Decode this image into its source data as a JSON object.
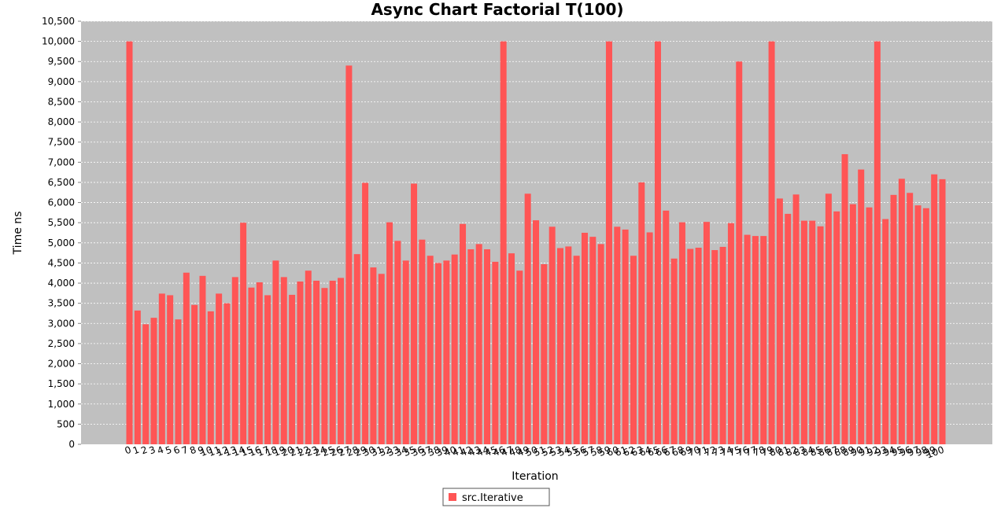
{
  "chart_data": {
    "type": "bar",
    "title": "Async Chart Factorial T(100)",
    "xlabel": "Iteration",
    "ylabel": "Time ns",
    "ylim": [
      0,
      10500
    ],
    "ytick_step": 500,
    "grid": true,
    "legend_position": "bottom-center",
    "colors": {
      "bar": "#ff5555",
      "plot_bg": "#c0c0c0",
      "grid": "#ffffff"
    },
    "categories": [
      "0",
      "1",
      "2",
      "3",
      "4",
      "5",
      "6",
      "7",
      "8",
      "9",
      "10",
      "11",
      "12",
      "13",
      "14",
      "15",
      "16",
      "17",
      "18",
      "19",
      "20",
      "21",
      "22",
      "23",
      "24",
      "25",
      "26",
      "27",
      "28",
      "29",
      "30",
      "31",
      "32",
      "33",
      "34",
      "35",
      "36",
      "37",
      "38",
      "39",
      "40",
      "41",
      "42",
      "43",
      "44",
      "45",
      "46",
      "47",
      "48",
      "49",
      "50",
      "51",
      "52",
      "53",
      "54",
      "55",
      "56",
      "57",
      "58",
      "59",
      "60",
      "61",
      "62",
      "63",
      "64",
      "65",
      "66",
      "67",
      "68",
      "69",
      "70",
      "71",
      "72",
      "73",
      "74",
      "75",
      "76",
      "77",
      "78",
      "79",
      "80",
      "81",
      "82",
      "83",
      "84",
      "85",
      "86",
      "87",
      "88",
      "89",
      "90",
      "91",
      "92",
      "93",
      "94",
      "95",
      "96",
      "97",
      "98",
      "99",
      "100"
    ],
    "series": [
      {
        "name": "src.Iterative",
        "values": [
          10000,
          3320,
          2980,
          3140,
          3740,
          3700,
          3100,
          4260,
          3460,
          4180,
          3300,
          3740,
          3500,
          4150,
          5500,
          3890,
          4020,
          3700,
          4560,
          4150,
          3710,
          4040,
          4310,
          4060,
          3880,
          4060,
          4130,
          9400,
          4720,
          6490,
          4390,
          4230,
          5510,
          5050,
          4560,
          6470,
          5080,
          4680,
          4500,
          4560,
          4710,
          5470,
          4840,
          4970,
          4840,
          4530,
          10000,
          4740,
          4310,
          6220,
          5560,
          4470,
          5400,
          4870,
          4910,
          4680,
          5250,
          5150,
          4970,
          10000,
          5400,
          5330,
          4680,
          6500,
          5260,
          10000,
          5800,
          4610,
          5510,
          4850,
          4880,
          5520,
          4820,
          4900,
          5490,
          9500,
          5200,
          5170,
          5170,
          10000,
          6100,
          5720,
          6200,
          5550,
          5550,
          5410,
          6220,
          5780,
          7200,
          5960,
          6820,
          5880,
          10000,
          5590,
          6190,
          6590,
          6240,
          5930,
          5860,
          6700,
          6580
        ]
      }
    ]
  }
}
